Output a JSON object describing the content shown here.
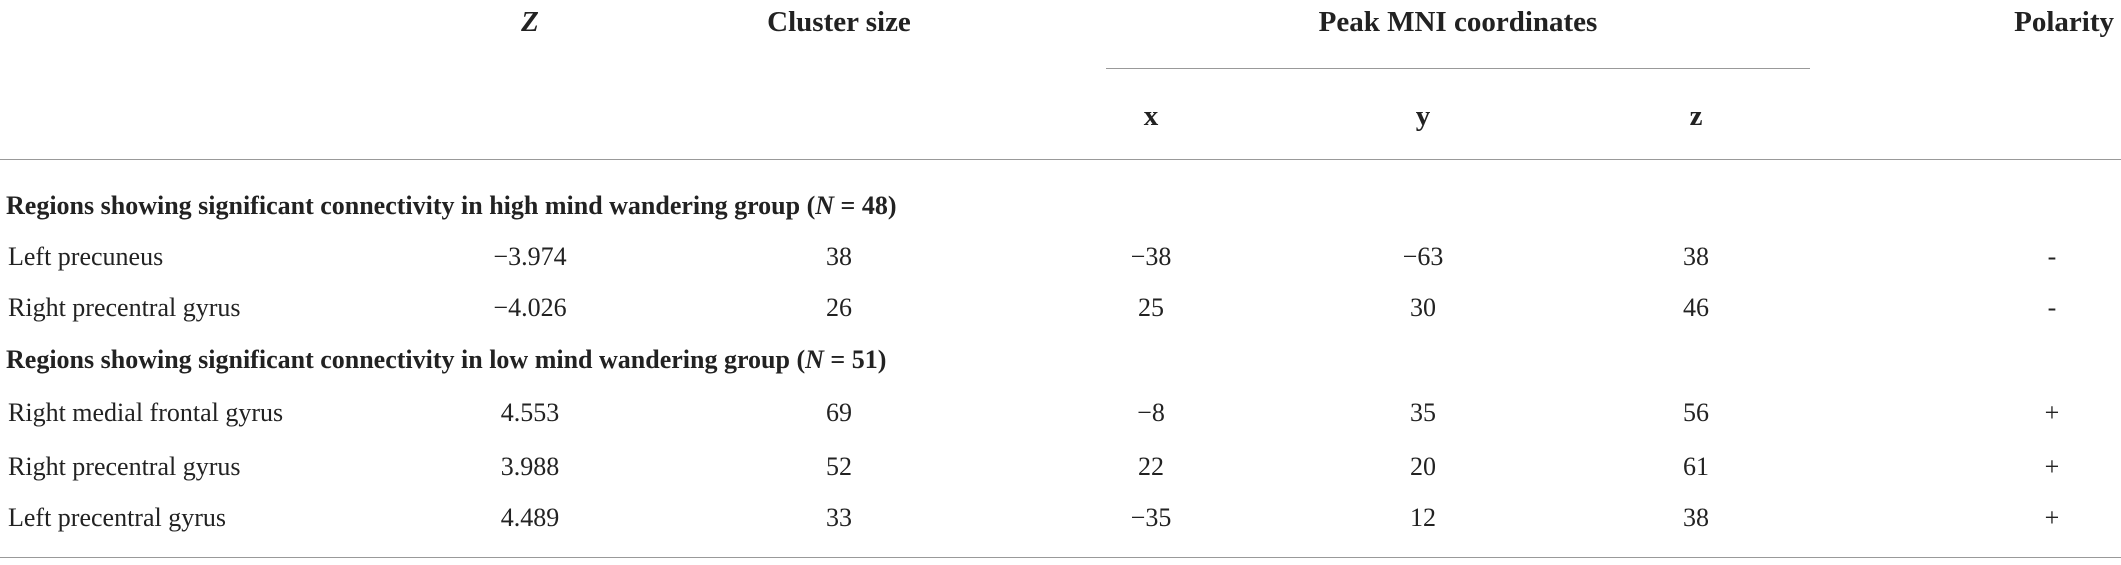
{
  "header": {
    "z": "Z",
    "cluster_size": "Cluster size",
    "peak": "Peak MNI coordinates",
    "polarity": "Polarity",
    "x": "x",
    "y": "y",
    "zc": "z"
  },
  "sections": [
    {
      "title": {
        "text": "Regions showing significant connectivity in high mind wandering group (",
        "italic": "N",
        "suffix": " = 48)"
      },
      "rows": [
        [
          "Left precuneus",
          "−3.974",
          "38",
          "−38",
          "−63",
          "38",
          "-"
        ],
        [
          "Right precentral gyrus",
          "−4.026",
          "26",
          "25",
          "30",
          "46",
          "-"
        ]
      ]
    },
    {
      "title": {
        "text": "Regions showing significant connectivity in low mind wandering group (",
        "italic": "N",
        "suffix": " = 51)"
      },
      "rows": [
        [
          "Right medial frontal gyrus",
          "4.553",
          "69",
          "−8",
          "35",
          "56",
          "+"
        ],
        [
          "Right precentral gyrus",
          "3.988",
          "52",
          "22",
          "20",
          "61",
          "+"
        ],
        [
          "Left precentral gyrus",
          "4.489",
          "33",
          "−35",
          "12",
          "38",
          "+"
        ]
      ]
    }
  ]
}
